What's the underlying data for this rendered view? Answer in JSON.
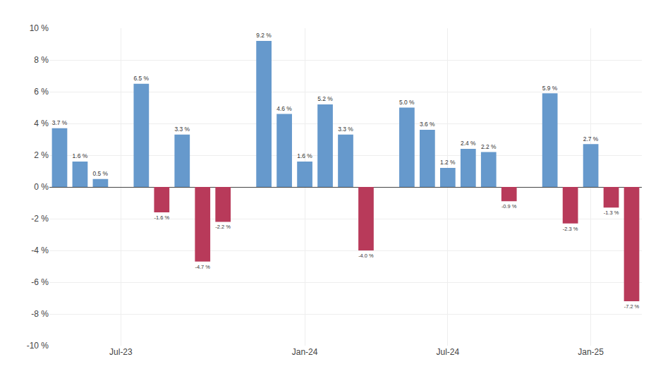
{
  "chart_data": {
    "type": "bar",
    "categories": [
      null,
      null,
      null,
      "Jul-23",
      null,
      null,
      null,
      null,
      null,
      null,
      null,
      null,
      "Jan-24",
      null,
      null,
      null,
      null,
      null,
      null,
      "Jul-24",
      null,
      null,
      null,
      null,
      null,
      null,
      "Jan-25",
      null,
      null
    ],
    "values": [
      3.7,
      1.6,
      0.5,
      null,
      6.5,
      -1.6,
      3.3,
      -4.7,
      -2.2,
      null,
      9.2,
      4.6,
      1.6,
      5.2,
      3.3,
      -4.0,
      null,
      5.0,
      3.6,
      1.2,
      2.4,
      2.2,
      -0.9,
      null,
      5.9,
      -2.3,
      2.7,
      -1.3,
      -7.2
    ],
    "value_labels": [
      "3.7 %",
      "1.6 %",
      "0.5 %",
      null,
      "6.5 %",
      "-1.6 %",
      "3.3 %",
      "-4.7 %",
      "-2.2 %",
      null,
      "9.2 %",
      "4.6 %",
      "1.6 %",
      "5.2 %",
      "3.3 %",
      "-4.0 %",
      null,
      "5.0 %",
      "3.6 %",
      "1.2 %",
      "2.4 %",
      "2.2 %",
      "-0.9 %",
      null,
      "5.9 %",
      "-2.3 %",
      "2.7 %",
      "-1.3 %",
      "-7.2 %"
    ],
    "colors": [
      "#6699CC",
      "#6699CC",
      "#6699CC",
      null,
      "#6699CC",
      "#B83A5A",
      "#6699CC",
      "#B83A5A",
      "#B83A5A",
      null,
      "#6699CC",
      "#6699CC",
      "#6699CC",
      "#6699CC",
      "#6699CC",
      "#B83A5A",
      null,
      "#6699CC",
      "#6699CC",
      "#6699CC",
      "#6699CC",
      "#6699CC",
      "#B83A5A",
      null,
      "#6699CC",
      "#B83A5A",
      "#6699CC",
      "#B83A5A",
      "#B83A5A"
    ],
    "data_labels": true,
    "ylim": [
      -10,
      10
    ],
    "yticks": [
      {
        "value": -10,
        "label": "-10 %"
      },
      {
        "value": -8,
        "label": "-8 %"
      },
      {
        "value": -6,
        "label": "-6 %"
      },
      {
        "value": -4,
        "label": "-4 %"
      },
      {
        "value": -2,
        "label": "-2 %"
      },
      {
        "value": 0,
        "label": "0 %"
      },
      {
        "value": 2,
        "label": "2 %"
      },
      {
        "value": 4,
        "label": "4 %"
      },
      {
        "value": 6,
        "label": "6 %"
      },
      {
        "value": 8,
        "label": "8 %"
      },
      {
        "value": 10,
        "label": "10 %"
      }
    ],
    "grid": true
  }
}
